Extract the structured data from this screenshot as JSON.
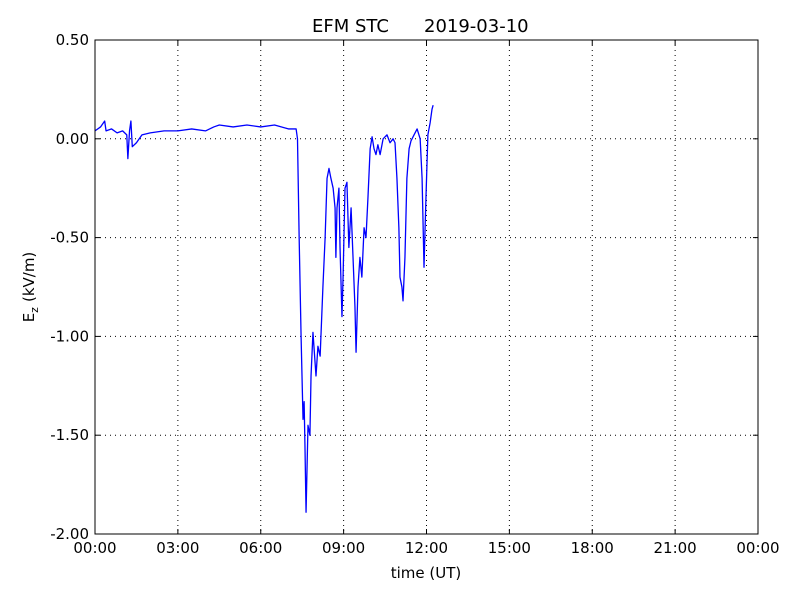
{
  "chart_data": {
    "type": "line",
    "title": "EFM STC",
    "date": "2019-03-10",
    "xlabel": "time (UT)",
    "ylabel": {
      "base": "E",
      "sub": "z",
      "unit": "(kV/m)"
    },
    "grid": true,
    "xlim": [
      0,
      24
    ],
    "xticks": [
      {
        "value": 0,
        "label": "00:00"
      },
      {
        "value": 3,
        "label": "03:00"
      },
      {
        "value": 6,
        "label": "06:00"
      },
      {
        "value": 9,
        "label": "09:00"
      },
      {
        "value": 12,
        "label": "12:00"
      },
      {
        "value": 15,
        "label": "15:00"
      },
      {
        "value": 18,
        "label": "18:00"
      },
      {
        "value": 21,
        "label": "21:00"
      },
      {
        "value": 24,
        "label": "00:00"
      }
    ],
    "ylim": [
      -2.0,
      0.5
    ],
    "yticks": [
      {
        "value": 0.5,
        "label": "0.50"
      },
      {
        "value": 0,
        "label": "0.00"
      },
      {
        "value": -0.5,
        "label": "-0.50"
      },
      {
        "value": -1.0,
        "label": "-1.00"
      },
      {
        "value": -1.5,
        "label": "-1.50"
      },
      {
        "value": -2.0,
        "label": "-2.00"
      }
    ],
    "series": [
      {
        "color": "#0000ff",
        "x": [
          0,
          0.2,
          0.35,
          0.4,
          0.6,
          0.8,
          1.0,
          1.15,
          1.19,
          1.25,
          1.3,
          1.35,
          1.5,
          1.7,
          2.0,
          2.5,
          3.0,
          3.5,
          4.0,
          4.3,
          4.5,
          5.0,
          5.5,
          6.0,
          6.5,
          7.0,
          7.28,
          7.33,
          7.39,
          7.46,
          7.53,
          7.57,
          7.6,
          7.64,
          7.71,
          7.78,
          7.82,
          7.89,
          8.0,
          8.07,
          8.15,
          8.25,
          8.33,
          8.4,
          8.47,
          8.54,
          8.62,
          8.69,
          8.72,
          8.76,
          8.83,
          8.87,
          8.94,
          8.98,
          9.05,
          9.12,
          9.19,
          9.27,
          9.34,
          9.41,
          9.45,
          9.52,
          9.59,
          9.66,
          9.74,
          9.81,
          9.88,
          9.96,
          10.03,
          10.1,
          10.17,
          10.24,
          10.32,
          10.43,
          10.57,
          10.68,
          10.79,
          10.86,
          10.93,
          11.0,
          11.04,
          11.11,
          11.15,
          11.22,
          11.29,
          11.37,
          11.44,
          11.55,
          11.66,
          11.77,
          11.84,
          11.91,
          11.98,
          12.05,
          12.13,
          12.2,
          12.24
        ],
        "values": [
          0.04,
          0.06,
          0.09,
          0.04,
          0.05,
          0.03,
          0.04,
          0.02,
          -0.1,
          0.04,
          0.09,
          -0.04,
          -0.02,
          0.02,
          0.03,
          0.04,
          0.04,
          0.05,
          0.04,
          0.06,
          0.07,
          0.06,
          0.07,
          0.06,
          0.07,
          0.05,
          0.05,
          0.0,
          -0.5,
          -1.0,
          -1.42,
          -1.33,
          -1.55,
          -1.89,
          -1.45,
          -1.5,
          -1.2,
          -0.98,
          -1.2,
          -1.05,
          -1.1,
          -0.75,
          -0.5,
          -0.2,
          -0.15,
          -0.2,
          -0.25,
          -0.35,
          -0.6,
          -0.35,
          -0.25,
          -0.55,
          -0.9,
          -0.7,
          -0.25,
          -0.22,
          -0.55,
          -0.35,
          -0.6,
          -0.85,
          -1.08,
          -0.75,
          -0.6,
          -0.7,
          -0.45,
          -0.5,
          -0.3,
          -0.05,
          0.01,
          -0.05,
          -0.08,
          -0.03,
          -0.08,
          0.0,
          0.02,
          -0.02,
          0.0,
          -0.02,
          -0.2,
          -0.45,
          -0.7,
          -0.75,
          -0.82,
          -0.6,
          -0.2,
          -0.05,
          -0.01,
          0.02,
          0.05,
          0.0,
          -0.2,
          -0.65,
          -0.3,
          0.02,
          0.08,
          0.15,
          0.17
        ]
      }
    ]
  }
}
